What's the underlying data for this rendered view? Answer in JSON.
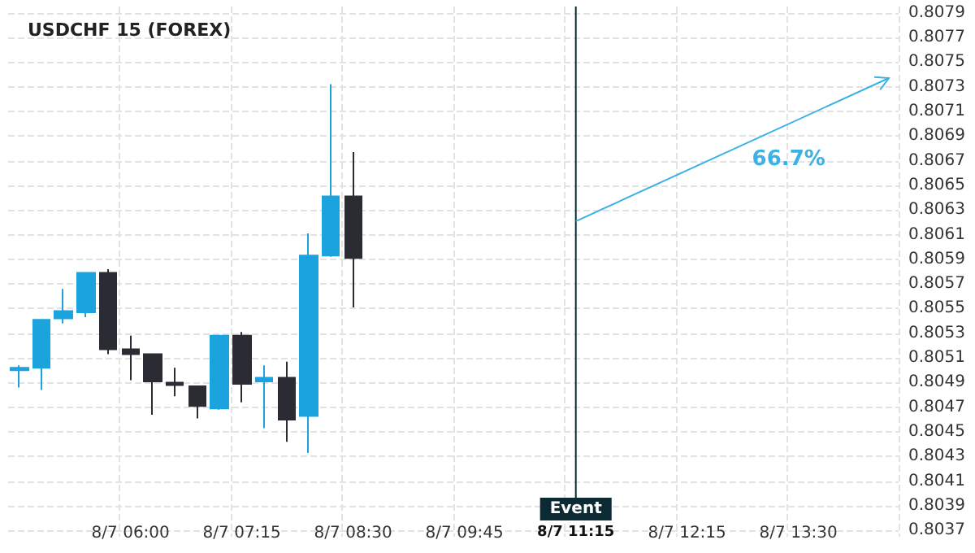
{
  "chart_data": {
    "type": "candlestick",
    "title": "USDCHF 15 (FOREX)",
    "categories": [
      null,
      null,
      null,
      null,
      null,
      "8/7 06:00",
      null,
      null,
      null,
      null,
      "8/7 07:15",
      null,
      null,
      null,
      null,
      "8/7 08:30",
      null,
      null,
      null,
      null,
      "8/7 09:45",
      null,
      null,
      null,
      null,
      "8/7 11:15",
      null,
      null,
      null,
      null,
      "8/7 12:15",
      null,
      null,
      null,
      null,
      "8/7 13:30",
      null,
      null,
      null,
      null
    ],
    "ohlc": [
      [
        0.805,
        0.80504,
        0.80486,
        0.80502
      ],
      [
        0.80502,
        0.80541,
        0.80484,
        0.80541
      ],
      [
        0.80542,
        0.80566,
        0.80538,
        0.80548
      ],
      [
        0.80547,
        0.80579,
        0.80543,
        0.80579
      ],
      [
        0.80579,
        0.80582,
        0.80513,
        0.80517
      ],
      [
        0.80517,
        0.80528,
        0.80492,
        0.80513
      ],
      [
        0.80513,
        0.80513,
        0.80464,
        0.80491
      ],
      [
        0.8049,
        0.80502,
        0.80479,
        0.80488
      ],
      [
        0.80487,
        0.80487,
        0.80461,
        0.80471
      ],
      [
        0.80469,
        0.80528,
        0.80468,
        0.80528
      ],
      [
        0.80528,
        0.80531,
        0.80474,
        0.80489
      ],
      [
        0.80491,
        0.80504,
        0.80453,
        0.80494
      ],
      [
        0.80494,
        0.80507,
        0.80442,
        0.8046
      ],
      [
        0.80463,
        0.80611,
        0.80433,
        0.80593
      ],
      [
        0.80593,
        0.80732,
        0.80592,
        0.80641
      ],
      [
        0.80641,
        0.80677,
        0.80551,
        0.80591
      ],
      null,
      null,
      null,
      null,
      null,
      null,
      null,
      null,
      null,
      null,
      null,
      null,
      null,
      null,
      null,
      null,
      null,
      null,
      null,
      null,
      null,
      null,
      null,
      null
    ],
    "colors": [
      "#1ba3dd",
      "#1ba3dd",
      "#1ba3dd",
      "#1ba3dd",
      "#2b2c33",
      "#2b2c33",
      "#2b2c33",
      "#2b2c33",
      "#2b2c33",
      "#1ba3dd",
      "#2b2c33",
      "#1ba3dd",
      "#2b2c33",
      "#1ba3dd",
      "#1ba3dd",
      "#2b2c33",
      null,
      null,
      null,
      null,
      null,
      null,
      null,
      null,
      null,
      null,
      null,
      null,
      null,
      null,
      null,
      null,
      null,
      null,
      null,
      null,
      null,
      null,
      null,
      null
    ],
    "annotations": [
      "66.7%"
    ],
    "ref_lines": [
      {
        "axis": "x",
        "value": "8/7 11:15",
        "label": "Event",
        "color": "#0b2a33"
      }
    ],
    "ylim": [
      0.80365,
      0.80795
    ],
    "yticks": [
      0.8037,
      0.8039,
      0.8041,
      0.8043,
      0.8045,
      0.8047,
      0.8049,
      0.8051,
      0.8053,
      0.8055,
      0.8057,
      0.8059,
      0.8061,
      0.8063,
      0.8065,
      0.8067,
      0.8069,
      0.8071,
      0.8073,
      0.8075,
      0.8077,
      0.8079
    ],
    "grid": true
  }
}
